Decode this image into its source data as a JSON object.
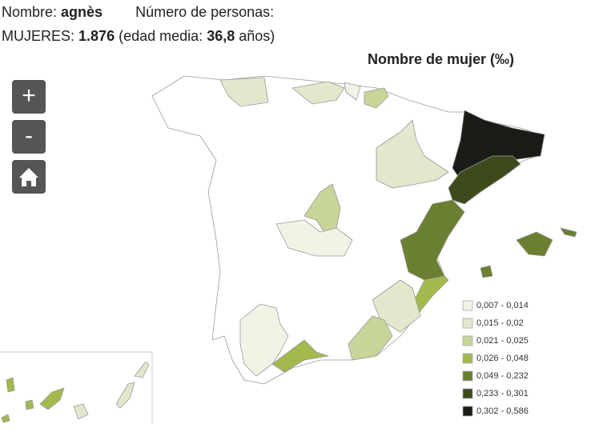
{
  "header": {
    "name_label": "Nombre:",
    "name": "agnès",
    "count_label": "Número de personas:",
    "women_label": "MUJERES:",
    "women_count": "1.876",
    "age_prefix": "(edad media:",
    "age": "36,8",
    "age_suffix": "años)"
  },
  "map": {
    "title": "Nombre de mujer (‰)",
    "controls": {
      "zoom_in": "+",
      "zoom_out": "-"
    },
    "legend": [
      {
        "label": "0,007 - 0,014",
        "color": "#f1f3e6"
      },
      {
        "label": "0,015 - 0,02",
        "color": "#e2e8cc"
      },
      {
        "label": "0,021 - 0,025",
        "color": "#c8d598"
      },
      {
        "label": "0,026 - 0,048",
        "color": "#a3b94e"
      },
      {
        "label": "0,049 - 0,232",
        "color": "#6b7f31"
      },
      {
        "label": "0,233 - 0,301",
        "color": "#3d4a1c"
      },
      {
        "label": "0,302 - 0,586",
        "color": "#1a1d17"
      }
    ]
  }
}
